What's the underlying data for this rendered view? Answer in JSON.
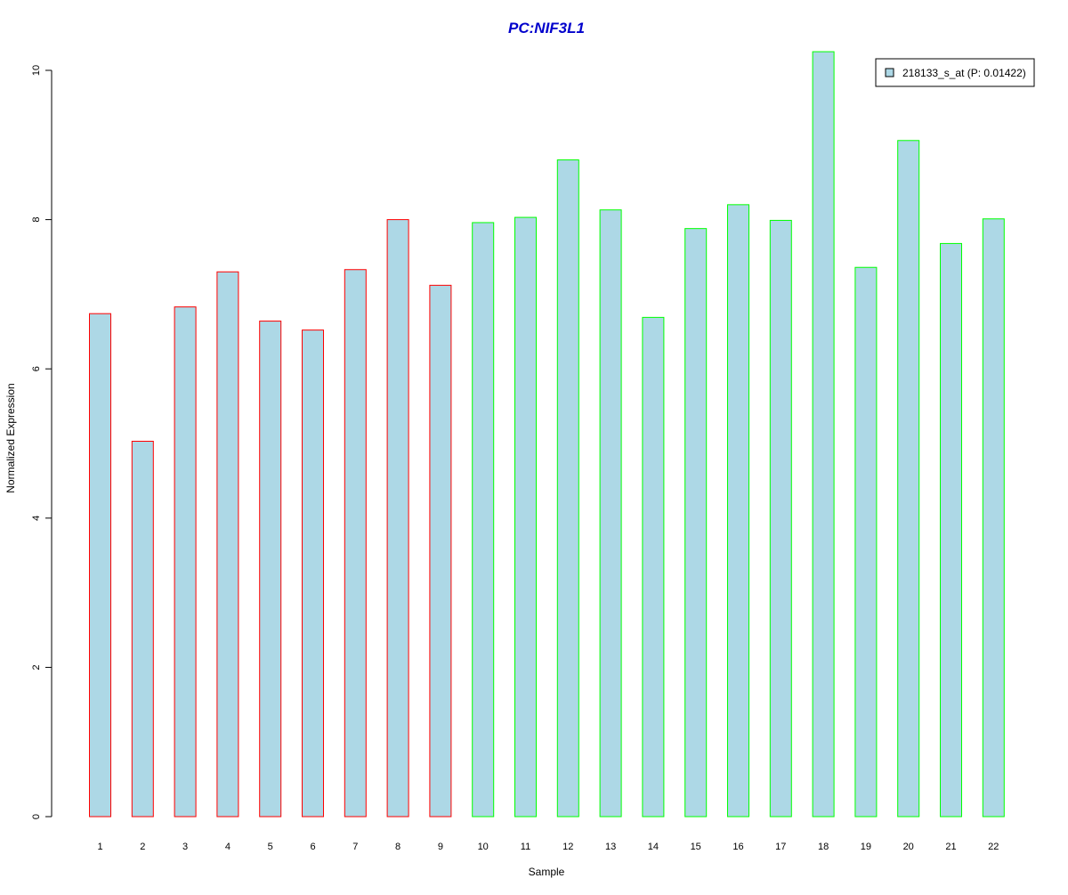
{
  "chart_data": {
    "type": "bar",
    "title": "PC:NIF3L1",
    "xlabel": "Sample",
    "ylabel": "Normalized Expression",
    "categories": [
      "1",
      "2",
      "3",
      "4",
      "5",
      "6",
      "7",
      "8",
      "9",
      "10",
      "11",
      "12",
      "13",
      "14",
      "15",
      "16",
      "17",
      "18",
      "19",
      "20",
      "21",
      "22"
    ],
    "series": [
      {
        "name": "218133_s_at (P: 0.01422)",
        "values": [
          6.74,
          5.03,
          6.83,
          7.3,
          6.64,
          6.52,
          7.33,
          8.0,
          7.12,
          7.96,
          8.03,
          8.8,
          8.13,
          6.69,
          7.88,
          8.2,
          7.99,
          10.25,
          7.36,
          9.06,
          7.68,
          8.01
        ]
      }
    ],
    "group_colors": [
      "#ff0000",
      "#ff0000",
      "#ff0000",
      "#ff0000",
      "#ff0000",
      "#ff0000",
      "#ff0000",
      "#ff0000",
      "#ff0000",
      "#00ff00",
      "#00ff00",
      "#00ff00",
      "#00ff00",
      "#00ff00",
      "#00ff00",
      "#00ff00",
      "#00ff00",
      "#00ff00",
      "#00ff00",
      "#00ff00",
      "#00ff00",
      "#00ff00"
    ],
    "yticks": [
      0,
      2,
      4,
      6,
      8,
      10
    ],
    "ylim": [
      0,
      10.25
    ],
    "fill_color": "#add8e6",
    "title_color": "#0000cc",
    "legend_position": "top-right",
    "grid": false
  }
}
